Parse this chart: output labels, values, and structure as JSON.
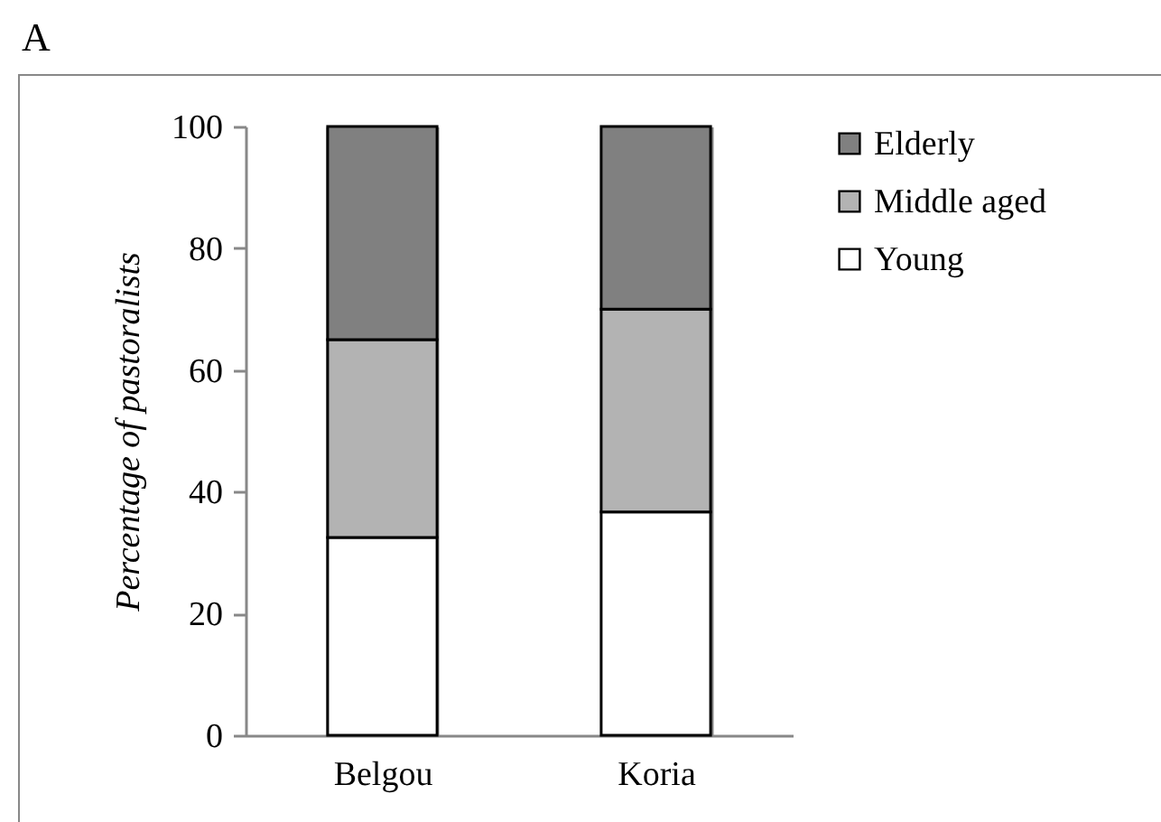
{
  "chart_data": {
    "type": "bar",
    "title": "A",
    "ylabel": "Percentage of pastoralists",
    "stacked": true,
    "categories": [
      "Belgou",
      "Koria"
    ],
    "series": [
      {
        "name": "Young",
        "color": "#ffffff",
        "values": [
          32.5,
          36.7
        ]
      },
      {
        "name": "Middle aged",
        "color": "#b3b3b3",
        "values": [
          32.5,
          33.3
        ]
      },
      {
        "name": "Elderly",
        "color": "#808080",
        "values": [
          35,
          30
        ]
      }
    ],
    "ylim": [
      0,
      100
    ],
    "yticks": [
      0,
      20,
      40,
      60,
      80,
      100
    ],
    "grid": "x",
    "legend": "top right"
  }
}
